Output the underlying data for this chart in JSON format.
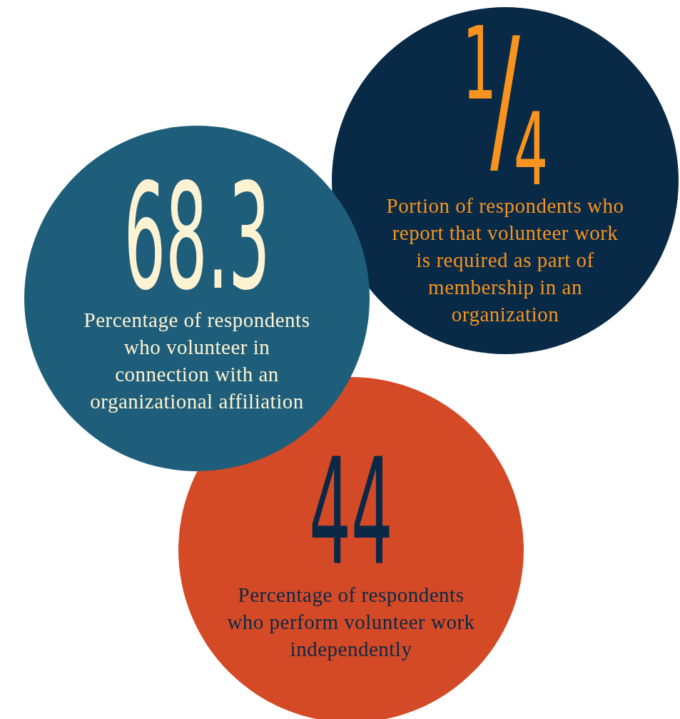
{
  "chart_data": {
    "type": "other",
    "categories": [
      "Percentage of respondents who volunteer in connection with an organizational affiliation",
      "Portion of respondents who report that volunteer work is required as part of membership in an organization",
      "Percentage of respondents who perform volunteer work independently"
    ],
    "values": [
      68.3,
      0.25,
      44
    ],
    "value_labels": [
      "68.3",
      "1/4",
      "44"
    ],
    "colors": [
      "#1f5e7a",
      "#082a47",
      "#d44a27"
    ]
  }
}
